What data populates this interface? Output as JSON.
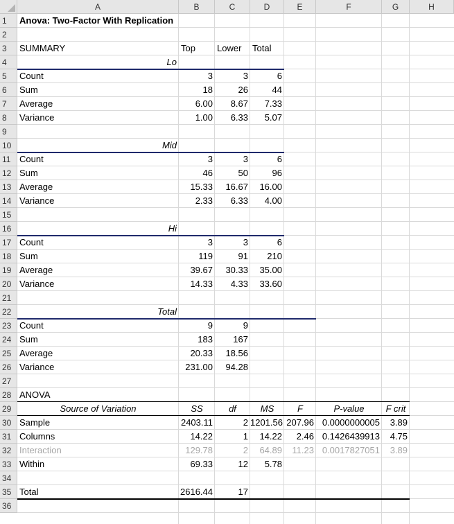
{
  "sheet": {
    "columns": [
      "A",
      "B",
      "C",
      "D",
      "E",
      "F",
      "G",
      "H"
    ],
    "rows": [
      "1",
      "2",
      "3",
      "4",
      "5",
      "6",
      "7",
      "8",
      "9",
      "10",
      "11",
      "12",
      "13",
      "14",
      "15",
      "16",
      "17",
      "18",
      "19",
      "20",
      "21",
      "22",
      "23",
      "24",
      "25",
      "26",
      "27",
      "28",
      "29",
      "30",
      "31",
      "32",
      "33",
      "34",
      "35",
      "36"
    ]
  },
  "title": "Anova: Two-Factor With Replication",
  "summary": {
    "label": "SUMMARY",
    "headers": [
      "Top",
      "Lower",
      "Total"
    ],
    "groups": [
      {
        "name": "Lo",
        "rows": [
          {
            "label": "Count",
            "values": [
              "3",
              "3",
              "6"
            ]
          },
          {
            "label": "Sum",
            "values": [
              "18",
              "26",
              "44"
            ]
          },
          {
            "label": "Average",
            "values": [
              "6.00",
              "8.67",
              "7.33"
            ]
          },
          {
            "label": "Variance",
            "values": [
              "1.00",
              "6.33",
              "5.07"
            ]
          }
        ]
      },
      {
        "name": "Mid",
        "rows": [
          {
            "label": "Count",
            "values": [
              "3",
              "3",
              "6"
            ]
          },
          {
            "label": "Sum",
            "values": [
              "46",
              "50",
              "96"
            ]
          },
          {
            "label": "Average",
            "values": [
              "15.33",
              "16.67",
              "16.00"
            ]
          },
          {
            "label": "Variance",
            "values": [
              "2.33",
              "6.33",
              "4.00"
            ]
          }
        ]
      },
      {
        "name": "Hi",
        "rows": [
          {
            "label": "Count",
            "values": [
              "3",
              "3",
              "6"
            ]
          },
          {
            "label": "Sum",
            "values": [
              "119",
              "91",
              "210"
            ]
          },
          {
            "label": "Average",
            "values": [
              "39.67",
              "30.33",
              "35.00"
            ]
          },
          {
            "label": "Variance",
            "values": [
              "14.33",
              "4.33",
              "33.60"
            ]
          }
        ]
      },
      {
        "name": "Total",
        "rows": [
          {
            "label": "Count",
            "values": [
              "9",
              "9"
            ]
          },
          {
            "label": "Sum",
            "values": [
              "183",
              "167"
            ]
          },
          {
            "label": "Average",
            "values": [
              "20.33",
              "18.56"
            ]
          },
          {
            "label": "Variance",
            "values": [
              "231.00",
              "94.28"
            ]
          }
        ]
      }
    ]
  },
  "anova": {
    "label": "ANOVA",
    "headers": [
      "Source of Variation",
      "SS",
      "df",
      "MS",
      "F",
      "P-value",
      "F crit"
    ],
    "rows": [
      {
        "label": "Sample",
        "values": [
          "2403.11",
          "2",
          "1201.56",
          "207.96",
          "0.0000000005",
          "3.89"
        ]
      },
      {
        "label": "Columns",
        "values": [
          "14.22",
          "1",
          "14.22",
          "2.46",
          "0.1426439913",
          "4.75"
        ]
      },
      {
        "label": "Interaction",
        "values": [
          "129.78",
          "2",
          "64.89",
          "11.23",
          "0.0017827051",
          "3.89"
        ]
      },
      {
        "label": "Within",
        "values": [
          "69.33",
          "12",
          "5.78",
          "",
          "",
          ""
        ]
      }
    ],
    "total": {
      "label": "Total",
      "values": [
        "2616.44",
        "17"
      ]
    }
  },
  "colors": {
    "header_bg": "#e6e6e6",
    "gridline": "#d9d9d9",
    "navy_rule": "#1f2a6b",
    "muted_text": "#a6a6a6"
  }
}
